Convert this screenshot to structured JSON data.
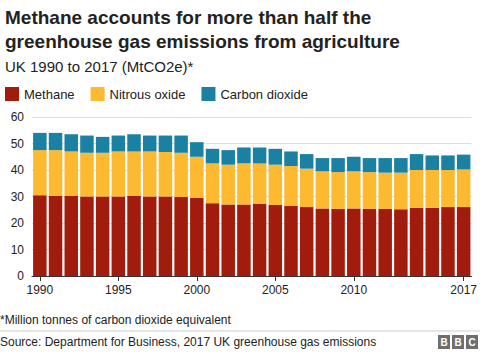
{
  "chart_data": {
    "type": "bar",
    "title": "Methane accounts for more than half the greenhouse gas emissions from agriculture",
    "subtitle": "UK 1990 to 2017 (MtCO2e)*",
    "footnote": "*Million tonnes of carbon dioxide equivalent",
    "source": "Source: Department for Business, 2017 UK greenhouse gas emissions",
    "logo": "BBC",
    "categories": [
      "1990",
      null,
      null,
      null,
      null,
      "1995",
      null,
      null,
      null,
      null,
      "2000",
      null,
      null,
      null,
      null,
      "2005",
      null,
      null,
      null,
      null,
      "2010",
      null,
      null,
      null,
      null,
      null,
      null,
      "2017"
    ],
    "series": [
      {
        "name": "Methane",
        "color": "#a21c0e",
        "values": [
          30.5,
          30.3,
          30.2,
          30.0,
          30.0,
          30.0,
          30.2,
          30.0,
          30.0,
          29.8,
          29.5,
          27.5,
          27.0,
          27.0,
          27.2,
          26.8,
          26.5,
          26.0,
          25.5,
          25.3,
          25.5,
          25.3,
          25.3,
          25.2,
          25.7,
          25.8,
          26.0,
          26.0
        ]
      },
      {
        "name": "Nitrous oxide",
        "color": "#fdb92f",
        "values": [
          17.0,
          17.2,
          16.8,
          16.5,
          16.5,
          17.0,
          16.8,
          17.0,
          16.8,
          16.7,
          15.5,
          15.0,
          15.0,
          15.5,
          15.3,
          15.2,
          15.0,
          14.5,
          14.0,
          13.9,
          14.0,
          13.9,
          13.7,
          13.8,
          14.3,
          14.2,
          14.0,
          14.2
        ]
      },
      {
        "name": "Carbon dioxide",
        "color": "#1b81a2",
        "values": [
          6.5,
          6.5,
          6.5,
          6.5,
          6.0,
          6.0,
          6.5,
          6.0,
          6.2,
          6.5,
          5.5,
          5.5,
          5.5,
          6.0,
          6.0,
          6.0,
          5.5,
          5.5,
          5.0,
          5.3,
          5.5,
          5.3,
          5.5,
          5.5,
          6.0,
          5.5,
          5.5,
          5.6
        ]
      }
    ],
    "stacked": true,
    "ylim": [
      0,
      60
    ],
    "yticks": [
      0,
      10,
      20,
      30,
      40,
      50,
      60
    ],
    "grid": true,
    "legend": "top-left"
  }
}
